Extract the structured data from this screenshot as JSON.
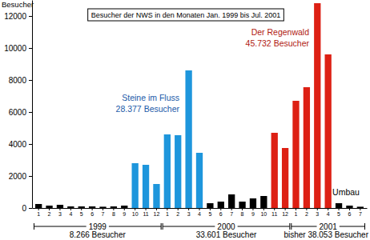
{
  "chart_data": {
    "type": "bar",
    "title": "Besucher der NWS in den Monaten Jan. 1999 bis Jul. 2001",
    "y_label": "Besucher",
    "categories": [
      "1",
      "2",
      "3",
      "4",
      "5",
      "6",
      "7",
      "8",
      "9",
      "10",
      "11",
      "12",
      "1",
      "2",
      "3",
      "4",
      "5",
      "6",
      "7",
      "8",
      "9",
      "10",
      "11",
      "12",
      "1",
      "2",
      "3",
      "4",
      "5",
      "6",
      "7"
    ],
    "values": [
      250,
      150,
      200,
      100,
      100,
      100,
      80,
      100,
      150,
      2800,
      2700,
      1500,
      4600,
      4550,
      8600,
      3450,
      300,
      400,
      850,
      400,
      600,
      750,
      4700,
      3750,
      6700,
      7550,
      12800,
      9600,
      300,
      150,
      80
    ],
    "colors": [
      "#000000",
      "#000000",
      "#000000",
      "#000000",
      "#000000",
      "#000000",
      "#000000",
      "#000000",
      "#000000",
      "#1e96dc",
      "#1e96dc",
      "#1e96dc",
      "#1e96dc",
      "#1e96dc",
      "#1e96dc",
      "#1e96dc",
      "#000000",
      "#000000",
      "#000000",
      "#000000",
      "#000000",
      "#000000",
      "#dd2014",
      "#dd2014",
      "#dd2014",
      "#dd2014",
      "#dd2014",
      "#dd2014",
      "#000000",
      "#000000",
      "#000000"
    ],
    "ylim": [
      0,
      13000
    ],
    "yticks": [
      0,
      2000,
      4000,
      6000,
      8000,
      10000,
      12000
    ],
    "annotations": [
      [
        "Steine im Fluss",
        "28.377 Besucher"
      ],
      [
        "Der Regenwald",
        "45.732 Besucher"
      ],
      [
        "Umbau"
      ]
    ],
    "groups": [
      {
        "label": "1999",
        "total": "8.266 Besucher"
      },
      {
        "label": "2000",
        "total": "33.601 Besucher"
      },
      {
        "label": "2001",
        "total": "bisher 38.053 Besucher"
      }
    ]
  }
}
